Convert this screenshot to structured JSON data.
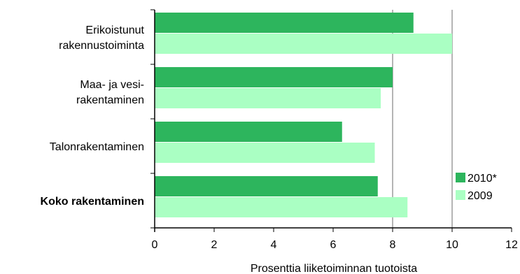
{
  "chart_data": {
    "type": "bar",
    "orientation": "horizontal",
    "categories": [
      [
        "Erikoistunut",
        "rakennustoiminta"
      ],
      [
        "Maa- ja vesi-",
        "rakentaminen"
      ],
      [
        "Talonrakentaminen"
      ],
      [
        "Koko rakentaminen"
      ]
    ],
    "bold_categories": [
      "Koko rakentaminen"
    ],
    "series": [
      {
        "name": "2010*",
        "color": "#2db55d",
        "values": [
          8.7,
          8.0,
          6.3,
          7.5
        ]
      },
      {
        "name": "2009",
        "color": "#aaffc3",
        "values": [
          10.0,
          7.6,
          7.4,
          8.5
        ]
      }
    ],
    "xlabel": "Prosenttia liiketoiminnan tuotoista",
    "xlim": [
      0,
      12
    ],
    "xticks": [
      "0",
      "2",
      "4",
      "6",
      "8",
      "10",
      "12"
    ],
    "grid": "vertical lines at 8 and 10",
    "grid_values": [
      8,
      10
    ],
    "legend_position": "bottom-right"
  }
}
